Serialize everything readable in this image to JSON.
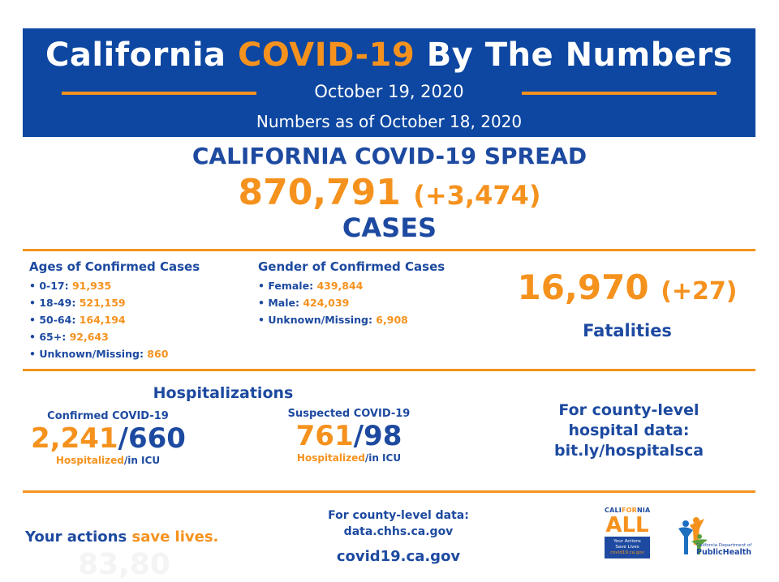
{
  "banner": {
    "title_pre": "California",
    "title_accent": "COVID-19",
    "title_post": "By The Numbers",
    "date": "October 19, 2020",
    "as_of": "Numbers as of October 18, 2020",
    "bg_color": "#0d47a1",
    "accent_color": "#f5921e"
  },
  "spread": {
    "title": "CALIFORNIA COVID-19 SPREAD",
    "cases": "870,791",
    "cases_delta": "(+3,474)",
    "cases_label": "CASES"
  },
  "ages": {
    "heading": "Ages of Confirmed Cases",
    "items": [
      {
        "label": "• 0-17:",
        "value": "91,935"
      },
      {
        "label": "• 18-49:",
        "value": "521,159"
      },
      {
        "label": "• 50-64:",
        "value": "164,194"
      },
      {
        "label": "• 65+:",
        "value": "92,643"
      },
      {
        "label": "• Unknown/Missing:",
        "value": "860"
      }
    ]
  },
  "gender": {
    "heading": "Gender of Confirmed Cases",
    "items": [
      {
        "label": "• Female:",
        "value": "439,844"
      },
      {
        "label": "• Male:",
        "value": "424,039"
      },
      {
        "label": "• Unknown/Missing:",
        "value": "6,908"
      }
    ]
  },
  "fatalities": {
    "number": "16,970",
    "delta": "(+27)",
    "label": "Fatalities"
  },
  "hospitalizations": {
    "title": "Hospitalizations",
    "confirmed": {
      "subtitle": "Confirmed COVID-19",
      "hospitalized": "2,241",
      "slash": "/",
      "icu": "660",
      "cap_hosp": "Hospitalized",
      "cap_icu": "/in ICU"
    },
    "suspected": {
      "subtitle": "Suspected COVID-19",
      "hospitalized": "761",
      "slash": "/",
      "icu": "98",
      "cap_hosp": "Hospitalized",
      "cap_icu": "/in ICU"
    }
  },
  "county_hospital": {
    "line1": "For county-level",
    "line2": "hospital data:",
    "line3": "bit.ly/hospitalsca"
  },
  "footer": {
    "actions_pre": "Your actions",
    "actions_accent": "save lives.",
    "ghost_text": "83,80",
    "county_data_line1": "For county-level data:",
    "county_data_line2": "data.chhs.ca.gov",
    "site": "covid19.ca.gov",
    "ca_logo": {
      "top_pre": "CALI",
      "top_accent": "FOR",
      "top_post": "NIA",
      "all": "ALL",
      "box_line1": "Your Actions",
      "box_line2": "Save Lives",
      "box_line3": "covid19.ca.gov"
    },
    "cdph_logo": {
      "small": "California Department of",
      "big": "PublicHealth"
    }
  }
}
